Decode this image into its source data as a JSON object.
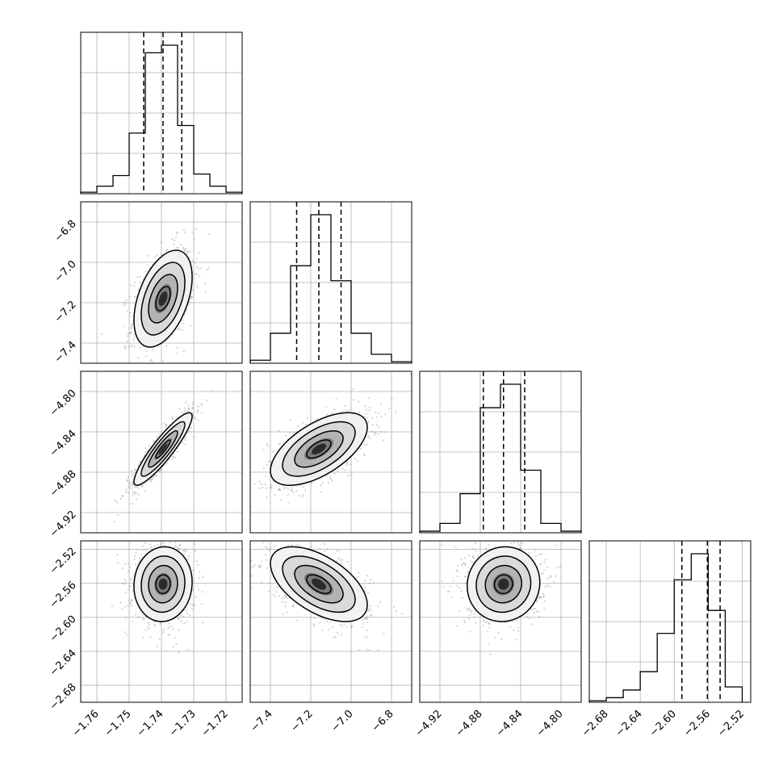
{
  "chart_data": {
    "type": "corner",
    "title": "",
    "parameters": [
      {
        "ticks": [
          -1.76,
          -1.75,
          -1.74,
          -1.73,
          -1.72
        ],
        "tick_labels": [
          "−1.76",
          "−1.75",
          "−1.74",
          "−1.73",
          "−1.72"
        ],
        "range": [
          -1.765,
          -1.715
        ]
      },
      {
        "ticks": [
          -7.4,
          -7.2,
          -7.0,
          -6.8
        ],
        "tick_labels": [
          "−7.4",
          "−7.2",
          "−7.0",
          "−6.8"
        ],
        "range": [
          -7.5,
          -6.7
        ]
      },
      {
        "ticks": [
          -4.92,
          -4.88,
          -4.84,
          -4.8
        ],
        "tick_labels": [
          "−4.92",
          "−4.88",
          "−4.84",
          "−4.80"
        ],
        "range": [
          -4.94,
          -4.78
        ]
      },
      {
        "ticks": [
          -2.68,
          -2.64,
          -2.6,
          -2.56,
          -2.52
        ],
        "tick_labels": [
          "−2.68",
          "−2.64",
          "−2.60",
          "−2.56",
          "−2.52"
        ],
        "range": [
          -2.7,
          -2.51
        ]
      }
    ],
    "histograms": [
      {
        "bins": [
          -1.7625,
          -1.7575,
          -1.7525,
          -1.7475,
          -1.7425,
          -1.7375,
          -1.7325,
          -1.7275,
          -1.7225,
          -1.7175
        ],
        "counts": [
          0.01,
          0.05,
          0.12,
          0.4,
          0.93,
          0.98,
          0.45,
          0.13,
          0.05,
          0.01
        ],
        "quantiles": [
          -1.7455,
          -1.7395,
          -1.7337
        ]
      },
      {
        "bins": [
          -7.45,
          -7.35,
          -7.25,
          -7.15,
          -7.05,
          -6.95,
          -6.85,
          -6.75
        ],
        "counts": [
          0.02,
          0.2,
          0.65,
          0.99,
          0.55,
          0.2,
          0.06,
          0.01
        ],
        "quantiles": [
          -7.27,
          -7.16,
          -7.05
        ]
      },
      {
        "bins": [
          -4.93,
          -4.91,
          -4.89,
          -4.87,
          -4.85,
          -4.83,
          -4.81,
          -4.79
        ],
        "counts": [
          0.01,
          0.06,
          0.25,
          0.8,
          0.95,
          0.4,
          0.06,
          0.01
        ],
        "quantiles": [
          -4.877,
          -4.857,
          -4.836
        ]
      },
      {
        "bins": [
          -2.69,
          -2.67,
          -2.65,
          -2.63,
          -2.61,
          -2.59,
          -2.57,
          -2.55,
          -2.53
        ],
        "counts": [
          0.01,
          0.03,
          0.08,
          0.2,
          0.45,
          0.8,
          0.97,
          0.6,
          0.1
        ],
        "quantiles": [
          -2.591,
          -2.561,
          -2.546
        ]
      }
    ],
    "pairs": [
      {
        "row": 1,
        "col": 0,
        "center": [
          -1.7395,
          -7.18
        ],
        "sd": [
          0.0045,
          0.12
        ],
        "rho": 0.45
      },
      {
        "row": 2,
        "col": 0,
        "center": [
          -1.7395,
          -4.857
        ],
        "sd": [
          0.0045,
          0.018
        ],
        "rho": 0.9
      },
      {
        "row": 2,
        "col": 1,
        "center": [
          -7.16,
          -4.857
        ],
        "sd": [
          0.12,
          0.018
        ],
        "rho": 0.6
      },
      {
        "row": 3,
        "col": 0,
        "center": [
          -1.7395,
          -2.561
        ],
        "sd": [
          0.0045,
          0.022
        ],
        "rho": 0.05
      },
      {
        "row": 3,
        "col": 1,
        "center": [
          -7.16,
          -2.561
        ],
        "sd": [
          0.12,
          0.022
        ],
        "rho": -0.55
      },
      {
        "row": 3,
        "col": 2,
        "center": [
          -4.857,
          -2.561
        ],
        "sd": [
          0.018,
          0.022
        ],
        "rho": 0.05
      }
    ]
  }
}
